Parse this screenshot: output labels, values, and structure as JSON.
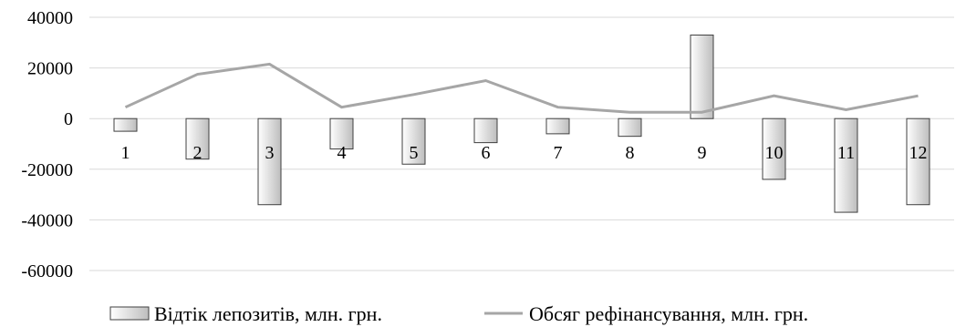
{
  "chart_data": {
    "type": "bar",
    "title": "",
    "xlabel": "",
    "ylabel": "",
    "categories": [
      "1",
      "2",
      "3",
      "4",
      "5",
      "6",
      "7",
      "8",
      "9",
      "10",
      "11",
      "12"
    ],
    "series": [
      {
        "name": "Відтік лепозитів, млн. грн.",
        "type": "bar",
        "values": [
          -5000,
          -16000,
          -34000,
          -12000,
          -18000,
          -9500,
          -6000,
          -7000,
          33000,
          -24000,
          -37000,
          -34000
        ]
      },
      {
        "name": "Обсяг рефінансування, млн. грн.",
        "type": "line",
        "values": [
          4500,
          17500,
          21500,
          4500,
          9500,
          15000,
          4500,
          2500,
          2500,
          9000,
          3500,
          9000
        ]
      }
    ],
    "ylim": [
      -60000,
      40000
    ],
    "yticks": [
      40000,
      20000,
      0,
      -20000,
      -40000,
      -60000
    ],
    "ytick_labels": [
      "40000",
      "20000",
      "0",
      "-20000",
      "-40000",
      "-60000"
    ],
    "grid": true,
    "legend_position": "bottom",
    "colors": {
      "bar_fill_light": "#ffffff",
      "bar_fill_dark": "#bdbdbd",
      "bar_stroke": "#404040",
      "line": "#a6a6a6",
      "grid": "#d9d9d9"
    }
  }
}
